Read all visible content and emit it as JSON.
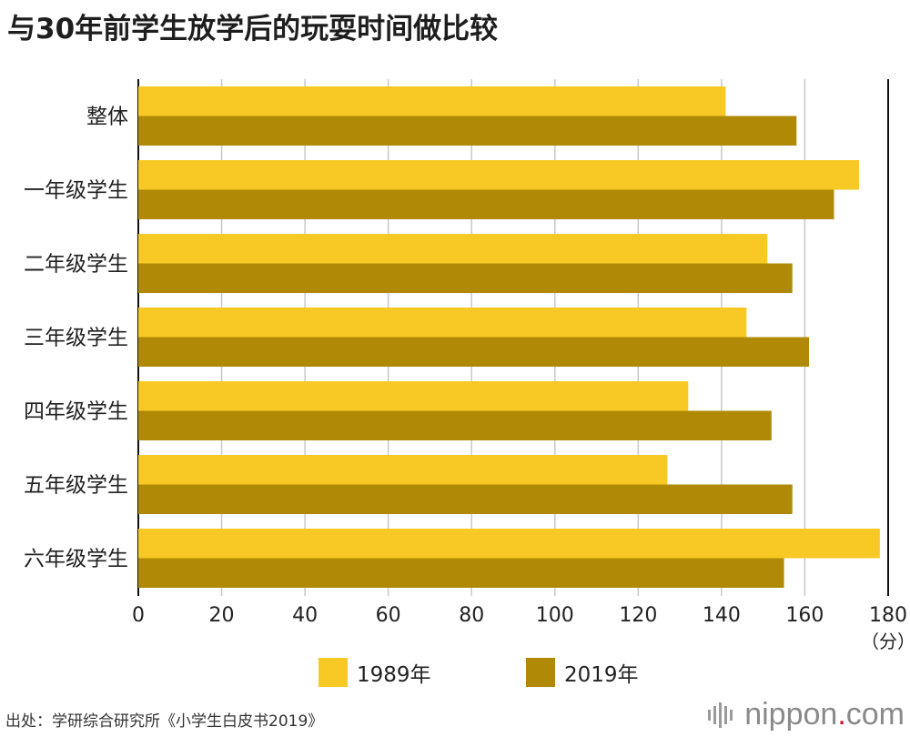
{
  "title": "与30年前学生放学后的玩耍时间做比较",
  "source": "出处：学研综合研究所《小学生白皮书2019》",
  "brand": {
    "part1": "nippon",
    "dot": ".",
    "part2": "com"
  },
  "colors": {
    "series_1989": "#F8C924",
    "series_2019": "#B08A06",
    "grid": "#c8c8c8",
    "axis": "#111111"
  },
  "chart_data": {
    "type": "bar",
    "orientation": "horizontal",
    "title": "与30年前学生放学后的玩耍时间做比较",
    "categories": [
      "整体",
      "一年级学生",
      "二年级学生",
      "三年级学生",
      "四年级学生",
      "五年级学生",
      "六年级学生"
    ],
    "series": [
      {
        "name": "1989年",
        "color": "#F8C924",
        "values": [
          141,
          173,
          151,
          146,
          132,
          127,
          178
        ]
      },
      {
        "name": "2019年",
        "color": "#B08A06",
        "values": [
          158,
          167,
          157,
          161,
          152,
          157,
          155
        ]
      }
    ],
    "xlim": [
      0,
      180
    ],
    "xticks": [
      0,
      20,
      40,
      60,
      80,
      100,
      120,
      140,
      160,
      180
    ],
    "xunit": "（分）",
    "grid": true,
    "legend_position": "bottom"
  }
}
